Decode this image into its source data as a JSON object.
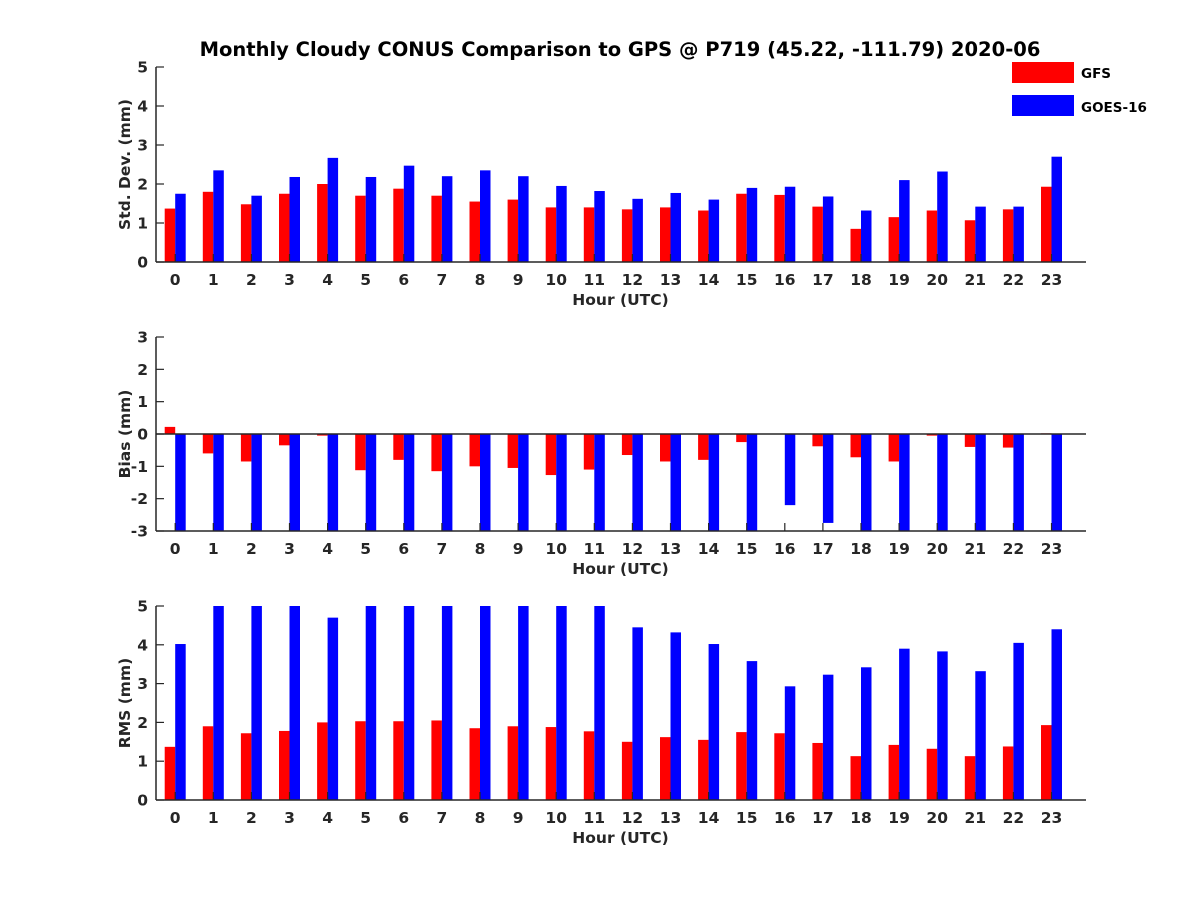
{
  "title": "Monthly Cloudy CONUS Comparison to GPS @ P719 (45.22, -111.79) 2020-06",
  "legend": {
    "placement": "top-right",
    "items": [
      "GFS",
      "GOES-16"
    ]
  },
  "colors": {
    "GFS": "#ff0000",
    "GOES-16": "#0000ff"
  },
  "chart_data": [
    {
      "type": "bar",
      "title": "Monthly Cloudy CONUS Comparison to GPS @ P719 (45.22, -111.79) 2020-06",
      "xlabel": "Hour (UTC)",
      "ylabel": "Std. Dev. (mm)",
      "ylim": [
        0,
        5
      ],
      "yticks": [
        "0",
        "1",
        "2",
        "3",
        "4",
        "5"
      ],
      "categories": [
        "0",
        "1",
        "2",
        "3",
        "4",
        "5",
        "6",
        "7",
        "8",
        "9",
        "10",
        "11",
        "12",
        "13",
        "14",
        "15",
        "16",
        "17",
        "18",
        "19",
        "20",
        "21",
        "22",
        "23"
      ],
      "series": [
        {
          "name": "GFS",
          "values": [
            1.37,
            1.8,
            1.48,
            1.75,
            2.0,
            1.7,
            1.88,
            1.7,
            1.55,
            1.6,
            1.4,
            1.4,
            1.35,
            1.4,
            1.32,
            1.75,
            1.72,
            1.42,
            0.85,
            1.15,
            1.32,
            1.07,
            1.35,
            1.93
          ]
        },
        {
          "name": "GOES-16",
          "values": [
            1.75,
            2.35,
            1.7,
            2.18,
            2.67,
            2.18,
            2.47,
            2.2,
            2.35,
            2.2,
            1.95,
            1.82,
            1.62,
            1.77,
            1.6,
            1.9,
            1.93,
            1.68,
            1.32,
            2.1,
            2.32,
            1.42,
            1.42,
            2.7
          ]
        }
      ]
    },
    {
      "type": "bar",
      "xlabel": "Hour (UTC)",
      "ylabel": "Bias (mm)",
      "ylim": [
        -3,
        3
      ],
      "yticks": [
        "-3",
        "-2",
        "-1",
        "0",
        "1",
        "2",
        "3"
      ],
      "categories": [
        "0",
        "1",
        "2",
        "3",
        "4",
        "5",
        "6",
        "7",
        "8",
        "9",
        "10",
        "11",
        "12",
        "13",
        "14",
        "15",
        "16",
        "17",
        "18",
        "19",
        "20",
        "21",
        "22",
        "23"
      ],
      "series": [
        {
          "name": "GFS",
          "values": [
            0.22,
            -0.6,
            -0.85,
            -0.35,
            -0.05,
            -1.12,
            -0.8,
            -1.15,
            -1.0,
            -1.05,
            -1.27,
            -1.1,
            -0.65,
            -0.85,
            -0.8,
            -0.25,
            0.0,
            -0.38,
            -0.72,
            -0.85,
            -0.05,
            -0.4,
            -0.42,
            0.02
          ]
        },
        {
          "name": "GOES-16",
          "values": [
            -3,
            -3,
            -3,
            -3,
            -3,
            -3,
            -3,
            -3,
            -3,
            -3,
            -3,
            -3,
            -3,
            -3,
            -3,
            -3,
            -2.2,
            -2.75,
            -3,
            -3,
            -3,
            -3,
            -3,
            -3
          ]
        }
      ]
    },
    {
      "type": "bar",
      "xlabel": "Hour (UTC)",
      "ylabel": "RMS (mm)",
      "ylim": [
        0,
        5
      ],
      "yticks": [
        "0",
        "1",
        "2",
        "3",
        "4",
        "5"
      ],
      "categories": [
        "0",
        "1",
        "2",
        "3",
        "4",
        "5",
        "6",
        "7",
        "8",
        "9",
        "10",
        "11",
        "12",
        "13",
        "14",
        "15",
        "16",
        "17",
        "18",
        "19",
        "20",
        "21",
        "22",
        "23"
      ],
      "series": [
        {
          "name": "GFS",
          "values": [
            1.37,
            1.9,
            1.72,
            1.78,
            2.0,
            2.03,
            2.03,
            2.05,
            1.85,
            1.9,
            1.88,
            1.77,
            1.5,
            1.62,
            1.55,
            1.75,
            1.72,
            1.47,
            1.13,
            1.42,
            1.32,
            1.13,
            1.38,
            1.93
          ]
        },
        {
          "name": "GOES-16",
          "values": [
            4.02,
            5,
            5,
            5,
            4.7,
            5,
            5,
            5,
            5,
            5,
            5,
            5,
            4.45,
            4.32,
            4.02,
            3.58,
            2.93,
            3.23,
            3.42,
            3.9,
            3.83,
            3.32,
            4.05,
            4.4
          ]
        }
      ]
    }
  ]
}
